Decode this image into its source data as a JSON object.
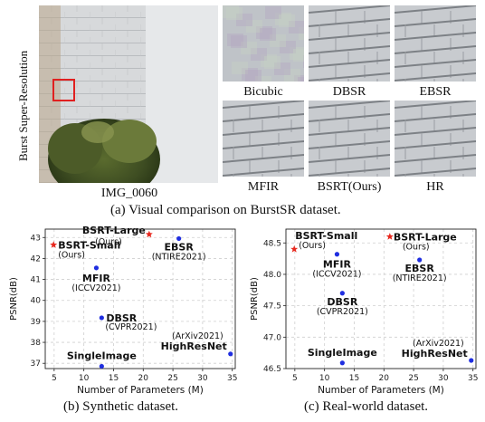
{
  "figure": {
    "row_label": "Burst Super-Resolution",
    "image_label": "IMG_0060",
    "crop_labels": [
      "Bicubic",
      "DBSR",
      "EBSR",
      "MFIR",
      "BSRT(Ours)",
      "HR"
    ],
    "caption_a": "(a) Visual comparison on BurstSR dataset.",
    "caption_b": "(b) Synthetic dataset.",
    "caption_c": "(c) Real-world dataset.",
    "colors": {
      "ours": "#e8281e",
      "others": "#1f2ee0",
      "crop_box": "#e02020"
    }
  },
  "chart_data": [
    {
      "type": "scatter",
      "xlabel": "Number of Parameters (M)",
      "ylabel": "PSNR(dB)",
      "xlim": [
        3.5,
        35.5
      ],
      "ylim": [
        36.75,
        43.4
      ],
      "xticks": [
        "5",
        "10",
        "15",
        "20",
        "25",
        "30",
        "35"
      ],
      "yticks": [
        "37",
        "38",
        "39",
        "40",
        "41",
        "42",
        "43"
      ],
      "grid": true,
      "points": [
        {
          "name": "BSRT-Large",
          "sub": "(Ours)",
          "x": 21.0,
          "y": 43.15,
          "marker": "star",
          "ours": true
        },
        {
          "name": "BSRT-Small",
          "sub": "(Ours)",
          "x": 4.9,
          "y": 42.65,
          "marker": "star",
          "ours": true
        },
        {
          "name": "EBSR",
          "sub": "(NTIRE2021)",
          "x": 26.0,
          "y": 42.95,
          "marker": "dot",
          "ours": false
        },
        {
          "name": "MFIR",
          "sub": "(ICCV2021)",
          "x": 12.1,
          "y": 41.55,
          "marker": "dot",
          "ours": false
        },
        {
          "name": "DBSR",
          "sub": "(CVPR2021)",
          "x": 13.0,
          "y": 39.17,
          "marker": "dot",
          "ours": false
        },
        {
          "name": "HighResNet",
          "sub": "(ArXiv2021)",
          "x": 34.7,
          "y": 37.45,
          "marker": "dot",
          "ours": false
        },
        {
          "name": "SingleImage",
          "sub": "",
          "x": 13.0,
          "y": 36.86,
          "marker": "dot",
          "ours": false
        }
      ]
    },
    {
      "type": "scatter",
      "xlabel": "Number of Parameters (M)",
      "ylabel": "PSNR(dB)",
      "xlim": [
        3.5,
        35.5
      ],
      "ylim": [
        46.5,
        48.72
      ],
      "xticks": [
        "5",
        "10",
        "15",
        "20",
        "25",
        "30",
        "35"
      ],
      "yticks": [
        "46.5",
        "47.0",
        "47.5",
        "48.0",
        "48.5"
      ],
      "grid": true,
      "points": [
        {
          "name": "BSRT-Large",
          "sub": "(Ours)",
          "x": 21.0,
          "y": 48.6,
          "marker": "star",
          "ours": true
        },
        {
          "name": "BSRT-Small",
          "sub": "(Ours)",
          "x": 4.9,
          "y": 48.4,
          "marker": "star",
          "ours": true
        },
        {
          "name": "MFIR",
          "sub": "(ICCV2021)",
          "x": 12.1,
          "y": 48.32,
          "marker": "dot",
          "ours": false
        },
        {
          "name": "EBSR",
          "sub": "(NTIRE2021)",
          "x": 26.0,
          "y": 48.23,
          "marker": "dot",
          "ours": false
        },
        {
          "name": "DBSR",
          "sub": "(CVPR2021)",
          "x": 13.0,
          "y": 47.7,
          "marker": "dot",
          "ours": false
        },
        {
          "name": "HighResNet",
          "sub": "(ArXiv2021)",
          "x": 34.7,
          "y": 46.63,
          "marker": "dot",
          "ours": false
        },
        {
          "name": "SingleImage",
          "sub": "",
          "x": 13.0,
          "y": 46.59,
          "marker": "dot",
          "ours": false
        }
      ]
    }
  ]
}
